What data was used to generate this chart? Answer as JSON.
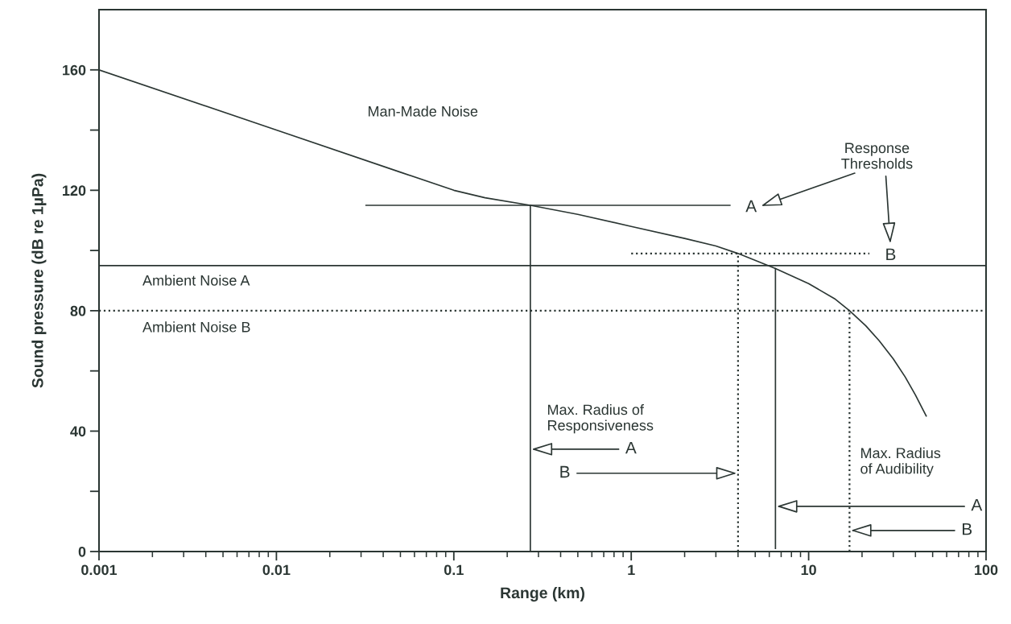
{
  "chart_data": {
    "type": "line",
    "xlabel": "Range (km)",
    "ylabel": "Sound pressure (dB re 1µPa)",
    "log": "x",
    "xlim": [
      0.001,
      100
    ],
    "xticks": [
      0.001,
      0.01,
      0.1,
      1,
      10,
      100
    ],
    "ylim": [
      0,
      180
    ],
    "yticks": [
      0,
      {
        "value": 20,
        "label": null
      },
      40,
      {
        "value": 60,
        "label": null
      },
      80,
      {
        "value": 100,
        "label": null
      },
      120,
      {
        "value": 140,
        "label": null
      },
      160
    ],
    "grid": false,
    "series": [
      {
        "name": "Man-Made Noise",
        "color": "#2b3633",
        "line_style": "solid",
        "x": [
          0.001,
          0.01,
          0.05,
          0.1,
          0.15,
          0.27,
          0.5,
          1,
          2,
          3,
          4,
          6.5,
          10,
          14,
          17,
          21,
          25,
          30,
          35,
          40,
          46
        ],
        "values": [
          160,
          140,
          126,
          120,
          117.5,
          115,
          112,
          108,
          104,
          101.5,
          99,
          94,
          89,
          84,
          80,
          75,
          70,
          64,
          58,
          52,
          45
        ]
      },
      {
        "name": "Ambient Noise A",
        "color": "#2b3633",
        "line_style": "solid",
        "x": [
          0.001,
          100
        ],
        "values": [
          95,
          95
        ]
      },
      {
        "name": "Ambient Noise B",
        "color": "#2b3633",
        "line_style": "dotted",
        "x": [
          0.001,
          100
        ],
        "values": [
          80,
          80
        ]
      },
      {
        "color": "#2b3633",
        "line_style": "solid",
        "x": [
          0.032,
          3.6
        ],
        "values": [
          115,
          115
        ]
      },
      {
        "color": "#2b3633",
        "line_style": "dotted",
        "x": [
          1,
          22
        ],
        "values": [
          99,
          99
        ]
      },
      {
        "color": "#2b3633",
        "line_style": "solid",
        "x": [
          0.27,
          0.27
        ],
        "values": [
          0,
          115
        ]
      },
      {
        "color": "#2b3633",
        "line_style": "dotted",
        "x": [
          4,
          4
        ],
        "values": [
          0,
          99
        ]
      },
      {
        "color": "#2b3633",
        "line_style": "solid",
        "x": [
          6.5,
          6.5
        ],
        "values": [
          1,
          94
        ]
      },
      {
        "color": "#2b3633",
        "line_style": "dotted",
        "x": [
          17,
          17
        ],
        "values": [
          0,
          80
        ]
      }
    ],
    "annotations": [
      "Response Thresholds",
      {
        "text": "A",
        "x": 3.6,
        "y": 115
      },
      {
        "text": "B",
        "x": 22,
        "y": 99
      },
      "Max. Radius of Responsiveness",
      {
        "text": "A",
        "x": 0.27,
        "y": 34
      },
      {
        "text": "B",
        "x": 4,
        "y": 26
      },
      "Max. Radius of Audibility",
      {
        "text": "A",
        "x": 6.5,
        "y": 15
      },
      {
        "text": "B",
        "x": 17,
        "y": 7
      }
    ]
  }
}
